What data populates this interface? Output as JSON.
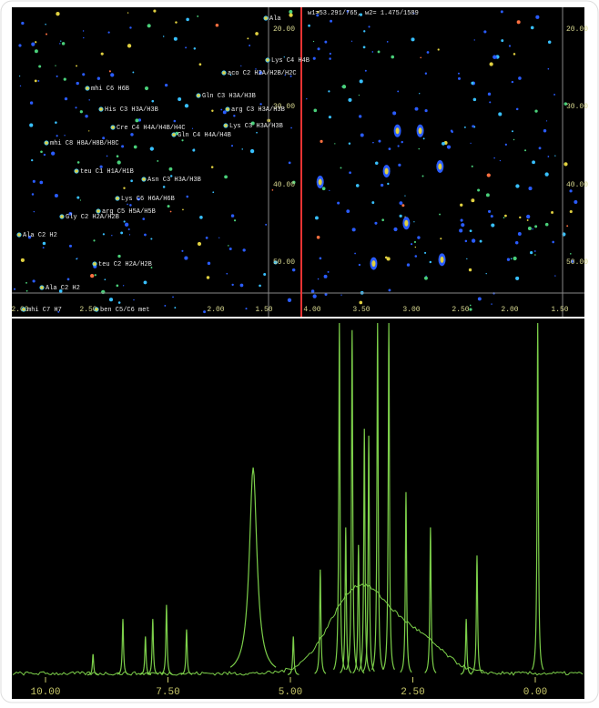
{
  "status": "w1=53.291/765, w2= 1.475/1589",
  "panel_2d": {
    "left_x_ticks": [
      "2.00",
      "2.50",
      "2.00",
      "1.50"
    ],
    "left_y_ticks": [
      "20.00",
      "30.00",
      "40.00",
      "50.00"
    ],
    "right_x_ticks": [
      "4.00",
      "3.50",
      "3.00",
      "2.50",
      "2.00",
      "1.50"
    ],
    "right_y_ticks": [
      "20.00",
      "30.00",
      "40.00",
      "50.00"
    ],
    "labels": [
      "Ala",
      "Lys C4 H4B",
      "aco C2 H2A/H2B/H2C",
      "mhi C6 H6B",
      "Gln C3 H3A/H3B",
      "arg C3 H3A/H3B",
      "His C3 H3A/H3B",
      "Cre C4 H4A/H4B/H4C",
      "Lys C3 H3A/H3B",
      "Gln C4 H4A/H4B",
      "mhi C8 H8A/H8B/H8C",
      "teu C1 H1A/H1B",
      "Asn C3 H3A/H3B",
      "Lys C6 H6A/H6B",
      "arg C5 H5A/H5B",
      "Gly C2 H2A/H2B",
      "Ala C2 H2",
      "teu C2 H2A/H2B",
      "Ala C2 H2",
      "mhi C7 H7",
      "ben C5/C6 met"
    ],
    "crosspeaks_x": [
      3.14,
      2.91,
      2.71,
      3.92,
      3.25,
      3.38,
      2.69,
      3.05
    ],
    "crosspeaks_y": [
      33.1,
      33.1,
      37.7,
      39.7,
      38.3,
      50.2,
      49.7,
      45.0
    ]
  },
  "chart_data": {
    "type": "spectrum",
    "xlim": [
      10,
      0
    ],
    "xticks": [
      {
        "value": 10,
        "label": "10.00"
      },
      {
        "value": 7.5,
        "label": "7.50"
      },
      {
        "value": 5,
        "label": "5.00"
      },
      {
        "value": 2.5,
        "label": "2.50"
      },
      {
        "value": 0,
        "label": "0.00"
      }
    ],
    "ylim": [
      0,
      100
    ],
    "color": "#7ccf4a",
    "x": [
      4.0,
      3.74,
      3.22,
      2.99,
      -0.05,
      5.76,
      3.49,
      3.4,
      3.61,
      4.39,
      2.64,
      2.14,
      1.19,
      1.41,
      8.42,
      7.81,
      7.53,
      7.96,
      7.12,
      9.03,
      4.94,
      3.87
    ],
    "values": [
      100,
      98,
      100,
      100,
      100,
      59,
      70,
      68,
      37,
      30,
      52,
      42,
      34,
      16,
      16,
      16,
      20,
      11,
      13,
      6,
      11,
      42
    ]
  }
}
